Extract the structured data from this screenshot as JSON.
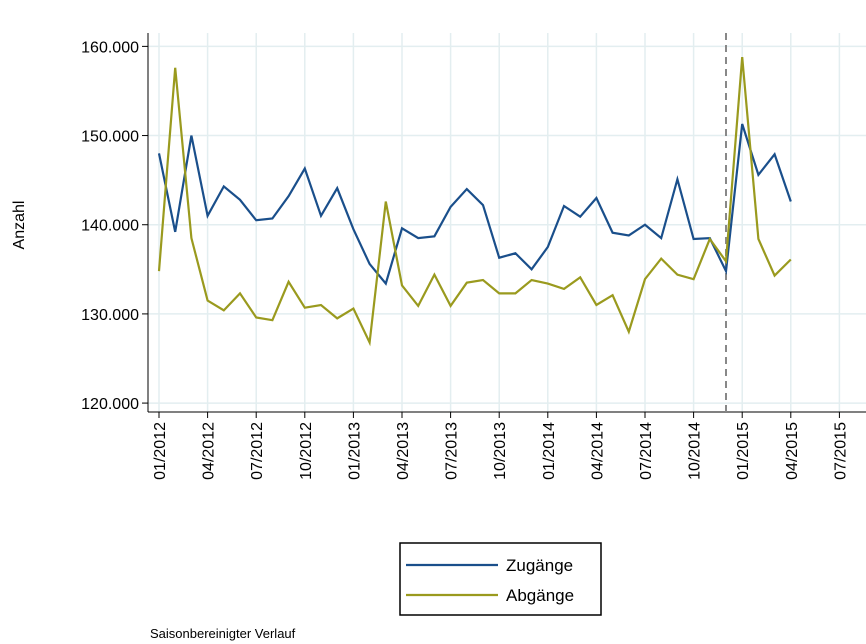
{
  "chart_data": {
    "type": "line",
    "y_label": "Anzahl",
    "caption": "Saisonbereinigter Verlauf",
    "categories": [
      "01/2012",
      null,
      null,
      "04/2012",
      null,
      null,
      "07/2012",
      null,
      null,
      "10/2012",
      null,
      null,
      "01/2013",
      null,
      null,
      "04/2013",
      null,
      null,
      "07/2013",
      null,
      null,
      "10/2013",
      null,
      null,
      "01/2014",
      null,
      null,
      "04/2014",
      null,
      null,
      "07/2014",
      null,
      null,
      "10/2014",
      null,
      null,
      "01/2015",
      null,
      null,
      "04/2015",
      null,
      null,
      "07/2015"
    ],
    "series": [
      {
        "name": "Zugänge",
        "color": "#1a4f8b",
        "values": [
          148000,
          139200,
          150000,
          141000,
          144300,
          142800,
          140500,
          140700,
          143200,
          146300,
          141000,
          144100,
          139500,
          135600,
          133400,
          139600,
          138500,
          138700,
          142000,
          144000,
          142200,
          136300,
          136800,
          135000,
          137500,
          142100,
          140900,
          143000,
          139100,
          138800,
          140000,
          138500,
          145100,
          138400,
          138500,
          134800,
          151300,
          145600,
          147900,
          142600,
          null,
          null,
          null
        ]
      },
      {
        "name": "Abgänge",
        "color": "#9a9a1e",
        "values": [
          134800,
          157600,
          138500,
          131500,
          130400,
          132300,
          129600,
          129300,
          133600,
          130700,
          131000,
          129500,
          130600,
          126800,
          142600,
          133200,
          130900,
          134400,
          130900,
          133500,
          133800,
          132300,
          132300,
          133800,
          133400,
          132800,
          134100,
          131000,
          132100,
          128000,
          133900,
          136200,
          134400,
          133900,
          138400,
          135900,
          158800,
          138400,
          134300,
          136100,
          null,
          null,
          null
        ]
      }
    ],
    "ylim": [
      119000,
      161500
    ],
    "yticks": [
      {
        "value": 120000,
        "label": "120.000"
      },
      {
        "value": 130000,
        "label": "130.000"
      },
      {
        "value": 140000,
        "label": "140.000"
      },
      {
        "value": 150000,
        "label": "150.000"
      },
      {
        "value": 160000,
        "label": "160.000"
      }
    ],
    "grid": true
  }
}
